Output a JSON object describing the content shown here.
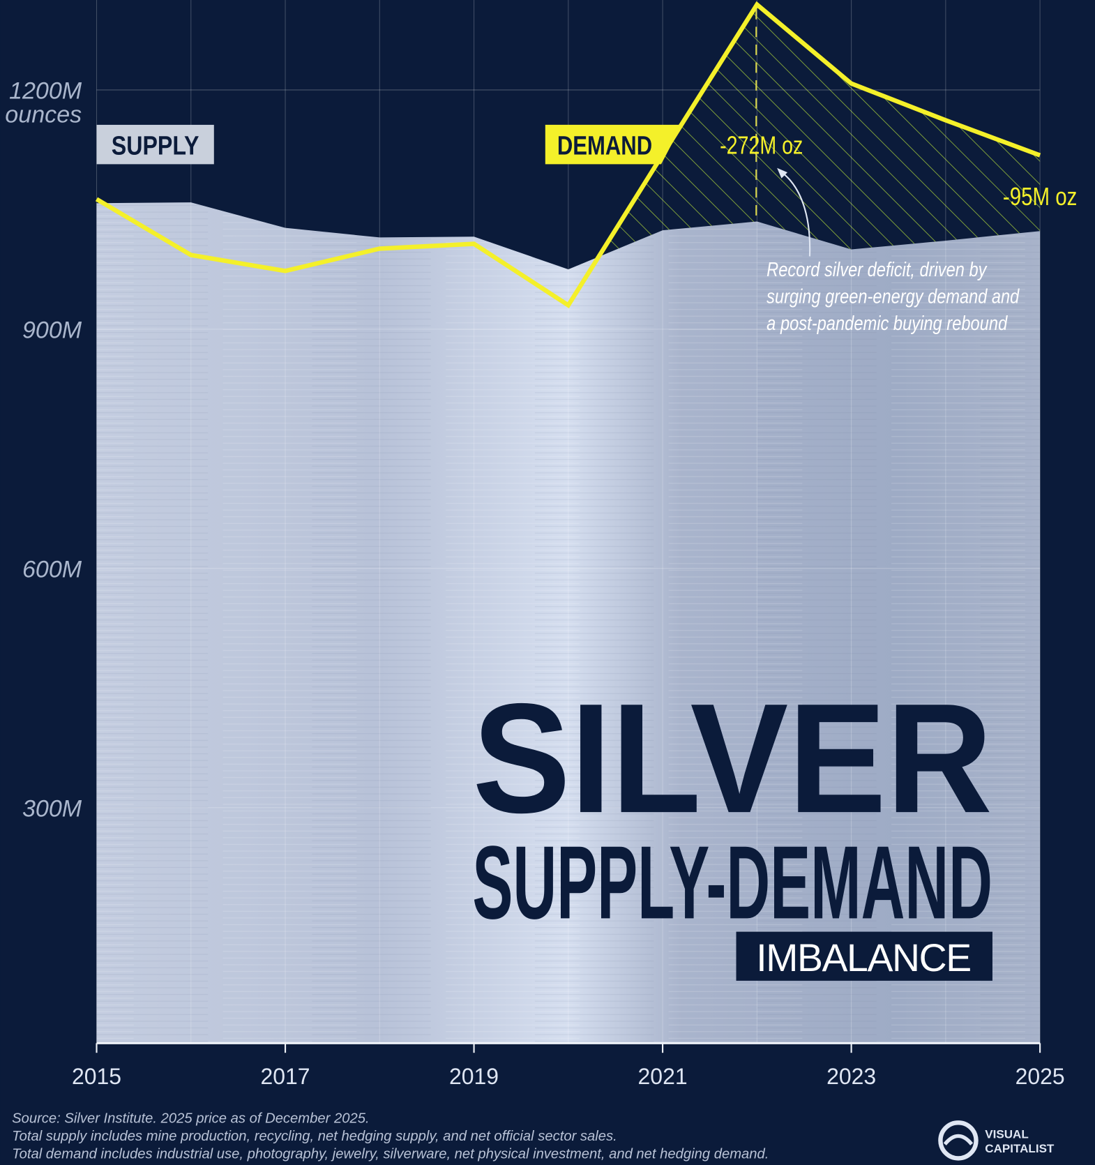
{
  "chart_data": {
    "type": "area",
    "title": "SILVER",
    "subtitle": "SUPPLY-DEMAND",
    "subtitle2": "IMBALANCE",
    "ylabel": "ounces",
    "x": [
      2015,
      2016,
      2017,
      2018,
      2019,
      2020,
      2021,
      2022,
      2023,
      2024,
      2025
    ],
    "xticks": [
      "2015",
      "2017",
      "2019",
      "2021",
      "2023",
      "2025"
    ],
    "yticks": [
      "300M",
      "600M",
      "900M",
      "1200M"
    ],
    "ytick_values": [
      300,
      600,
      900,
      1200
    ],
    "ylim": [
      0,
      1310
    ],
    "xlim": [
      2015,
      2025
    ],
    "grid": true,
    "series": [
      {
        "name": "SUPPLY",
        "kind": "area",
        "color": "#c9d3e6",
        "values": [
          1058,
          1059,
          1027,
          1015,
          1016,
          975,
          1024,
          1035,
          1000,
          1011,
          1023
        ]
      },
      {
        "name": "DEMAND",
        "kind": "line",
        "color": "#f4f02a",
        "values": [
          1063,
          993,
          973,
          1001,
          1007,
          930,
          1119,
          1307,
          1208,
          1162,
          1118
        ]
      }
    ],
    "annotations": {
      "deficit_2022": "-272M oz",
      "deficit_2025": "-95M oz",
      "note": [
        "Record silver deficit, driven by",
        "surging green-energy demand and",
        "a post-pandemic buying rebound"
      ]
    },
    "colors": {
      "background": "#0b1b3a",
      "demand": "#f4f02a",
      "deficit_hatch": "#8fb33a",
      "supply_label_bg": "#c9d0dc",
      "title": "#0b1b3a"
    }
  },
  "footer": {
    "source": "Source: Silver Institute. 2025 price as of December 2025.",
    "note_supply": "Total supply includes mine production, recycling, net hedging supply, and net official sector sales.",
    "note_demand": "Total demand includes industrial use, photography, jewelry, silverware, net physical investment, and net hedging demand."
  },
  "logo": {
    "line1": "VISUAL",
    "line2": "CAPITALIST"
  }
}
